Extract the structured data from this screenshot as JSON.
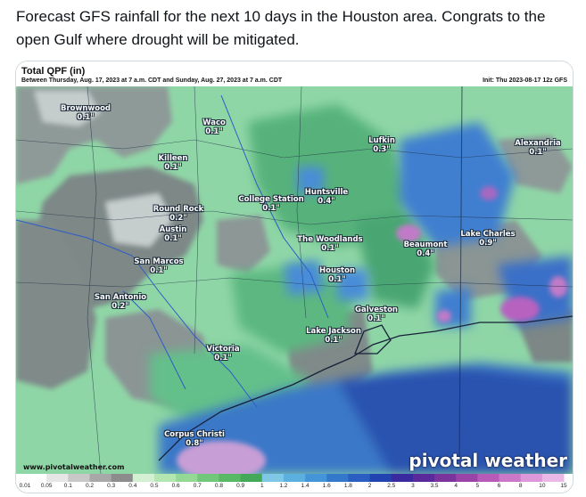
{
  "tweet": {
    "text": "Forecast GFS rainfall for the next 10 days in the Houston area. Congrats to the open Gulf where drought will be mitigated."
  },
  "map": {
    "title": "Total QPF (in)",
    "range": "Between Thursday, Aug. 17, 2023 at 7 a.m. CDT and Sunday, Aug. 27, 2023 at 7 a.m. CDT",
    "init": "Init: Thu 2023-08-17 12z GFS",
    "brand": "pivotal weather",
    "site": "www.pivotalweather.com",
    "cities": [
      {
        "name": "Brownwood",
        "value": "0.1\""
      },
      {
        "name": "Waco",
        "value": "0.1\""
      },
      {
        "name": "Killeen",
        "value": "0.1\""
      },
      {
        "name": "Lufkin",
        "value": "0.3\""
      },
      {
        "name": "Alexandria",
        "value": "0.1\""
      },
      {
        "name": "College Station",
        "value": "0.1\""
      },
      {
        "name": "Huntsville",
        "value": "0.4\""
      },
      {
        "name": "Round Rock",
        "value": "0.2\""
      },
      {
        "name": "Austin",
        "value": "0.1\""
      },
      {
        "name": "The Woodlands",
        "value": "0.1\""
      },
      {
        "name": "Beaumont",
        "value": "0.4\""
      },
      {
        "name": "Lake Charles",
        "value": "0.9\""
      },
      {
        "name": "San Marcos",
        "value": "0.1\""
      },
      {
        "name": "Houston",
        "value": "0.1\""
      },
      {
        "name": "San Antonio",
        "value": "0.2\""
      },
      {
        "name": "Galveston",
        "value": "0.1\""
      },
      {
        "name": "Lake Jackson",
        "value": "0.1\""
      },
      {
        "name": "Victoria",
        "value": "0.1\""
      },
      {
        "name": "Corpus Christi",
        "value": "0.8\""
      }
    ],
    "legend": {
      "labels": [
        "0.01",
        "0.05",
        "0.1",
        "0.2",
        "0.3",
        "0.4",
        "0.5",
        "0.6",
        "0.7",
        "0.8",
        "0.9",
        "1",
        "1.2",
        "1.4",
        "1.6",
        "1.8",
        "2",
        "2.5",
        "3",
        "3.5",
        "4",
        "5",
        "6",
        "8",
        "10",
        "15"
      ],
      "colors": [
        "#ffffff",
        "#e6e6e6",
        "#c8c8c8",
        "#a8a8a8",
        "#8c8c8c",
        "#d4f0d2",
        "#b4e6b2",
        "#94d896",
        "#72c87a",
        "#58b866",
        "#44a85a",
        "#7ec8e6",
        "#5cb0e0",
        "#4494d8",
        "#3478cc",
        "#2a5ec0",
        "#2244b0",
        "#3a2aa0",
        "#5a2a9c",
        "#7a349c",
        "#9a44a8",
        "#b85ab8",
        "#cc78c8",
        "#dc98d8",
        "#eab8e6",
        "#f4d6f2"
      ]
    }
  }
}
